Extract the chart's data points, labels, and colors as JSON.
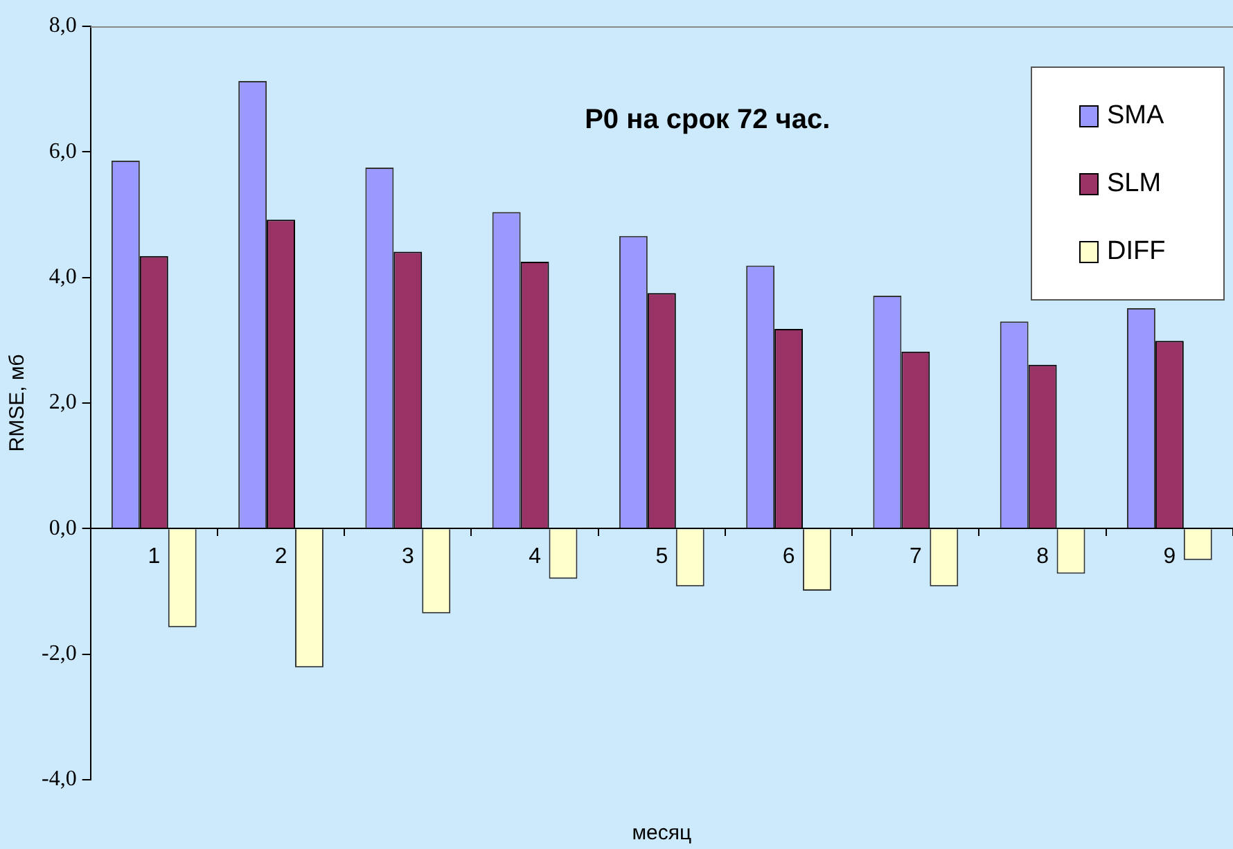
{
  "chart_data": {
    "type": "bar",
    "title": "P0 на срок 72 час.",
    "xlabel": "месяц",
    "ylabel": "RMSE, мб",
    "categories": [
      "1",
      "2",
      "3",
      "4",
      "5",
      "6",
      "7",
      "8",
      "9"
    ],
    "series": [
      {
        "name": "SMA",
        "color": "#9999ff",
        "values": [
          5.86,
          7.13,
          5.75,
          5.04,
          4.66,
          4.19,
          3.71,
          3.3,
          3.51
        ]
      },
      {
        "name": "SLM",
        "color": "#993366",
        "values": [
          4.34,
          4.92,
          4.41,
          4.25,
          3.75,
          3.18,
          2.82,
          2.61,
          2.99
        ]
      },
      {
        "name": "DIFF",
        "color": "#ffffcc",
        "values": [
          -1.57,
          -2.21,
          -1.35,
          -0.8,
          -0.92,
          -0.99,
          -0.92,
          -0.72,
          -0.5
        ]
      }
    ],
    "ylim": [
      -4,
      8
    ],
    "yticks": [
      {
        "value": -4,
        "label": "-4,0"
      },
      {
        "value": -2,
        "label": "-2,0"
      },
      {
        "value": 0,
        "label": "0,0"
      },
      {
        "value": 2,
        "label": "2,0"
      },
      {
        "value": 4,
        "label": "4,0"
      },
      {
        "value": 6,
        "label": "6,0"
      },
      {
        "value": 8,
        "label": "8,0"
      }
    ],
    "grid": false,
    "legend": "top right"
  }
}
